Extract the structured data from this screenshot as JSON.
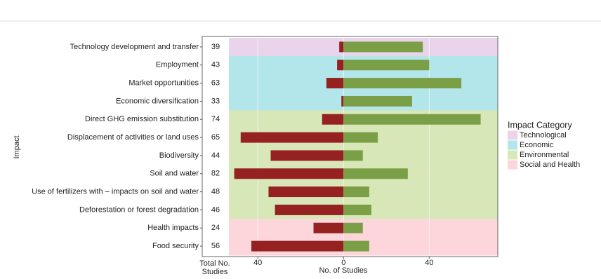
{
  "chart_data": {
    "type": "diverging-bar",
    "y_label": "Impact",
    "x_label": "No. of Studies",
    "totals_label": "Total No. Studies",
    "legend_title": "Impact Category",
    "categories": [
      "Technology development and transfer",
      "Employment",
      "Market opportunities",
      "Economic diversification",
      "Direct GHG emission substitution",
      "Displacement of activities or  land uses",
      "Biodiversity",
      "Soil and water",
      "Use of fertilizers with – impacts on soil and water",
      "Deforestation or forest degradation",
      "Health impacts",
      "Food security"
    ],
    "totals": [
      39,
      43,
      63,
      33,
      74,
      65,
      44,
      82,
      48,
      46,
      24,
      56
    ],
    "groups": [
      {
        "name": "Technological",
        "color": "#e9d4ec"
      },
      {
        "name": "Economic",
        "color": "#b3e6eb"
      },
      {
        "name": "Environmental",
        "color": "#d7e7b7"
      },
      {
        "name": "Social and Health",
        "color": "#fcd6da"
      }
    ],
    "row_group": [
      0,
      1,
      1,
      1,
      2,
      2,
      2,
      2,
      2,
      2,
      3,
      3
    ],
    "series": [
      {
        "color": "#952121",
        "values": [
          -2,
          -3,
          -8,
          -1,
          -10,
          -48,
          -34,
          -51,
          -35,
          -32,
          -14,
          -43
        ]
      },
      {
        "color": "#7b9f46",
        "values": [
          37,
          40,
          55,
          32,
          64,
          16,
          9,
          30,
          12,
          13,
          9,
          12
        ]
      }
    ],
    "xlim": [
      -53.5,
      72
    ],
    "xticks": [
      {
        "value": -40,
        "label": "40"
      },
      0,
      40
    ],
    "grid": true
  }
}
